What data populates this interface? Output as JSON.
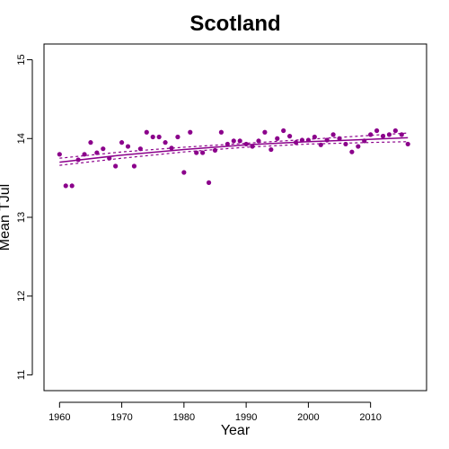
{
  "chart_data": {
    "type": "scatter",
    "title": "Scotland",
    "xlabel": "Year",
    "ylabel": "Mean TJul",
    "xlim": [
      1957.5,
      2019
    ],
    "ylim": [
      10.8,
      15.2
    ],
    "xticks": [
      1960,
      1970,
      1980,
      1990,
      2000,
      2010
    ],
    "yticks": [
      11,
      12,
      13,
      14,
      15
    ],
    "color": "#8b008b",
    "grid": false,
    "legend": "none",
    "points": {
      "x": [
        1960,
        1961,
        1962,
        1963,
        1964,
        1965,
        1966,
        1967,
        1968,
        1969,
        1970,
        1971,
        1972,
        1973,
        1974,
        1975,
        1976,
        1977,
        1978,
        1979,
        1980,
        1981,
        1982,
        1983,
        1984,
        1985,
        1986,
        1987,
        1988,
        1989,
        1990,
        1991,
        1992,
        1993,
        1994,
        1995,
        1996,
        1997,
        1998,
        1999,
        2000,
        2001,
        2002,
        2003,
        2004,
        2005,
        2006,
        2007,
        2008,
        2009,
        2010,
        2011,
        2012,
        2013,
        2014,
        2015,
        2016
      ],
      "y": [
        13.8,
        13.4,
        13.4,
        13.73,
        13.8,
        13.95,
        13.82,
        13.87,
        13.75,
        13.65,
        13.95,
        13.9,
        13.65,
        13.87,
        14.08,
        14.02,
        14.02,
        13.95,
        13.88,
        14.02,
        13.57,
        14.08,
        13.82,
        13.82,
        13.44,
        13.85,
        14.08,
        13.93,
        13.97,
        13.97,
        13.93,
        13.9,
        13.97,
        14.08,
        13.86,
        14.0,
        14.1,
        14.03,
        13.95,
        13.98,
        13.98,
        14.02,
        13.92,
        13.98,
        14.05,
        14.0,
        13.93,
        13.83,
        13.9,
        13.97,
        14.05,
        14.1,
        14.03,
        14.05,
        14.1,
        14.05,
        13.93
      ]
    },
    "fit": {
      "x": [
        1960,
        1970,
        1980,
        1990,
        2000,
        2010,
        2016
      ],
      "y": [
        13.7,
        13.79,
        13.86,
        13.92,
        13.96,
        13.99,
        14.01
      ],
      "lower": [
        13.66,
        13.75,
        13.83,
        13.89,
        13.93,
        13.95,
        13.96
      ],
      "upper": [
        13.75,
        13.83,
        13.89,
        13.94,
        13.99,
        14.04,
        14.07
      ]
    }
  }
}
